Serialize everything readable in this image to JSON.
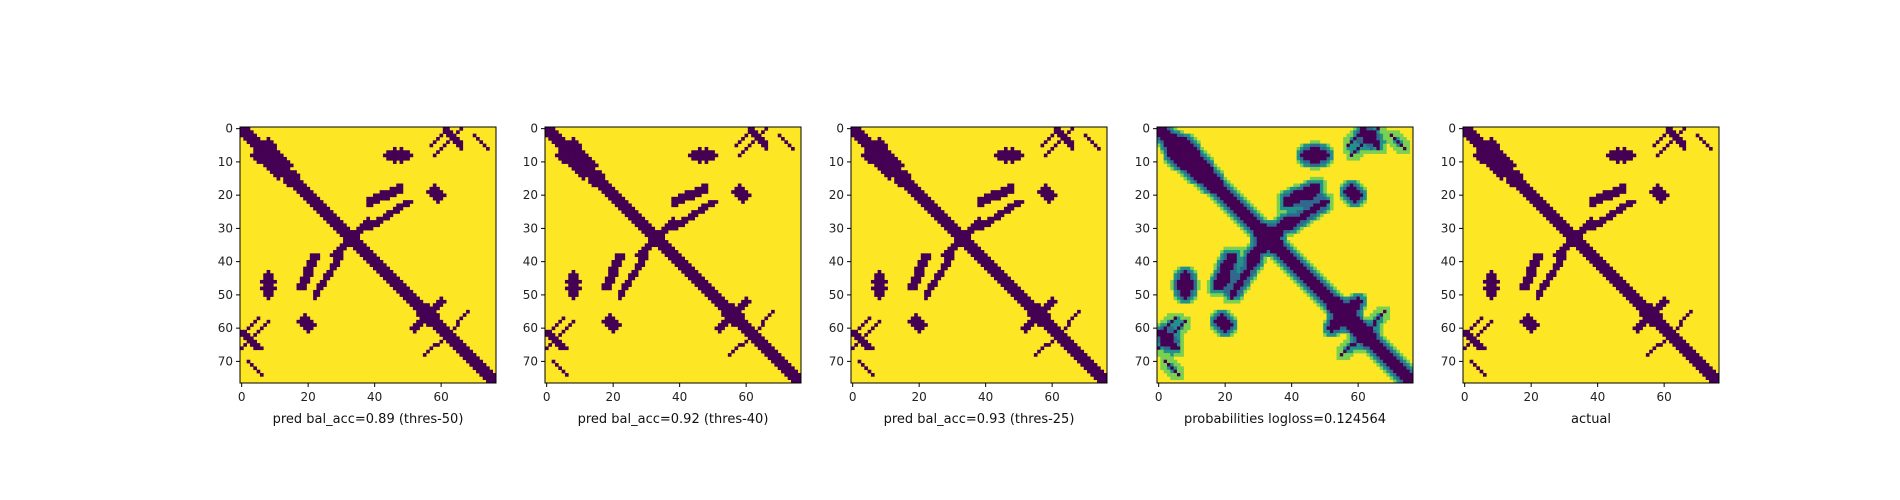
{
  "colors": {
    "low": "#440154",
    "mid": "#21918c",
    "high": "#fde725",
    "axis": "#000000"
  },
  "chart_data": [
    {
      "type": "heatmap",
      "xlabel": "pred bal_acc=0.89 (thres-50)",
      "style": "binary",
      "xticks": [
        0,
        20,
        40,
        60
      ],
      "yticks": [
        0,
        10,
        20,
        30,
        40,
        50,
        60,
        70
      ],
      "size": 77
    },
    {
      "type": "heatmap",
      "xlabel": "pred bal_acc=0.92 (thres-40)",
      "style": "binary",
      "xticks": [
        0,
        20,
        40,
        60
      ],
      "yticks": [
        0,
        10,
        20,
        30,
        40,
        50,
        60,
        70
      ],
      "size": 77
    },
    {
      "type": "heatmap",
      "xlabel": "pred bal_acc=0.93 (thres-25)",
      "style": "binary",
      "xticks": [
        0,
        20,
        40,
        60
      ],
      "yticks": [
        0,
        10,
        20,
        30,
        40,
        50,
        60,
        70
      ],
      "size": 77
    },
    {
      "type": "heatmap",
      "xlabel": "probabilities logloss=0.124564",
      "style": "continuous",
      "xticks": [
        0,
        20,
        40,
        60
      ],
      "yticks": [
        0,
        10,
        20,
        30,
        40,
        50,
        60,
        70
      ],
      "size": 77
    },
    {
      "type": "heatmap",
      "xlabel": "actual",
      "style": "binary",
      "xticks": [
        0,
        20,
        40,
        60
      ],
      "yticks": [
        0,
        10,
        20,
        30,
        40,
        50,
        60,
        70
      ],
      "size": 77
    }
  ]
}
